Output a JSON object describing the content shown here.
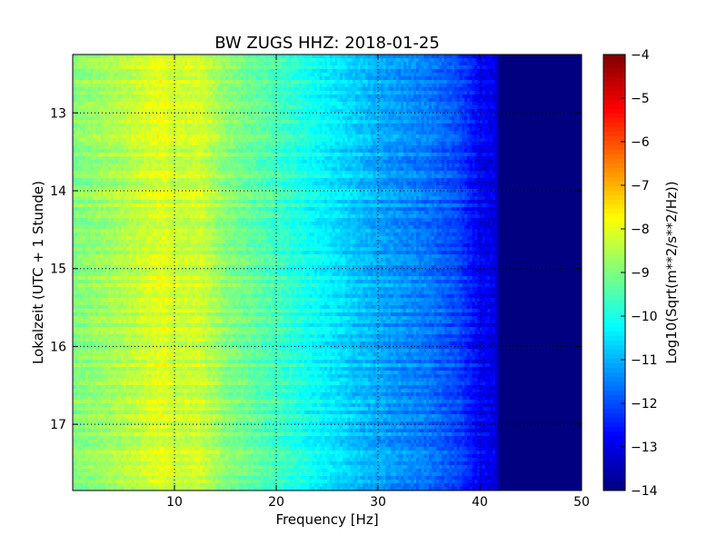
{
  "chart_data": {
    "type": "heatmap",
    "title": "BW ZUGS HHZ: 2018-01-25",
    "xlabel": "Frequency [Hz]",
    "ylabel": "Lokalzeit (UTC + 1 Stunde)",
    "xlim": [
      0,
      50
    ],
    "ylim": [
      12.25,
      17.85
    ],
    "y_inverted": true,
    "xticks": [
      10,
      20,
      30,
      40,
      50
    ],
    "yticks": [
      13,
      14,
      15,
      16,
      17
    ],
    "grid": true,
    "colormap": "jet",
    "colorbar": {
      "label": "Log10(Sqrt(m**2/s**2/Hz))",
      "min": -14,
      "max": -4,
      "ticks": [
        -4,
        -5,
        -6,
        -7,
        -8,
        -9,
        -10,
        -11,
        -12,
        -13,
        -14
      ]
    },
    "spectrum_profile": {
      "frequency_hz": [
        0,
        5,
        8,
        9,
        10,
        12.5,
        15,
        20,
        25,
        30,
        35,
        38,
        40,
        41.5,
        42,
        50
      ],
      "log10_amplitude": [
        -9.0,
        -8.5,
        -8.1,
        -8.0,
        -8.3,
        -8.2,
        -8.9,
        -9.6,
        -10.4,
        -11.1,
        -11.6,
        -12.1,
        -12.8,
        -13.0,
        -14.0,
        -14.0
      ]
    }
  }
}
